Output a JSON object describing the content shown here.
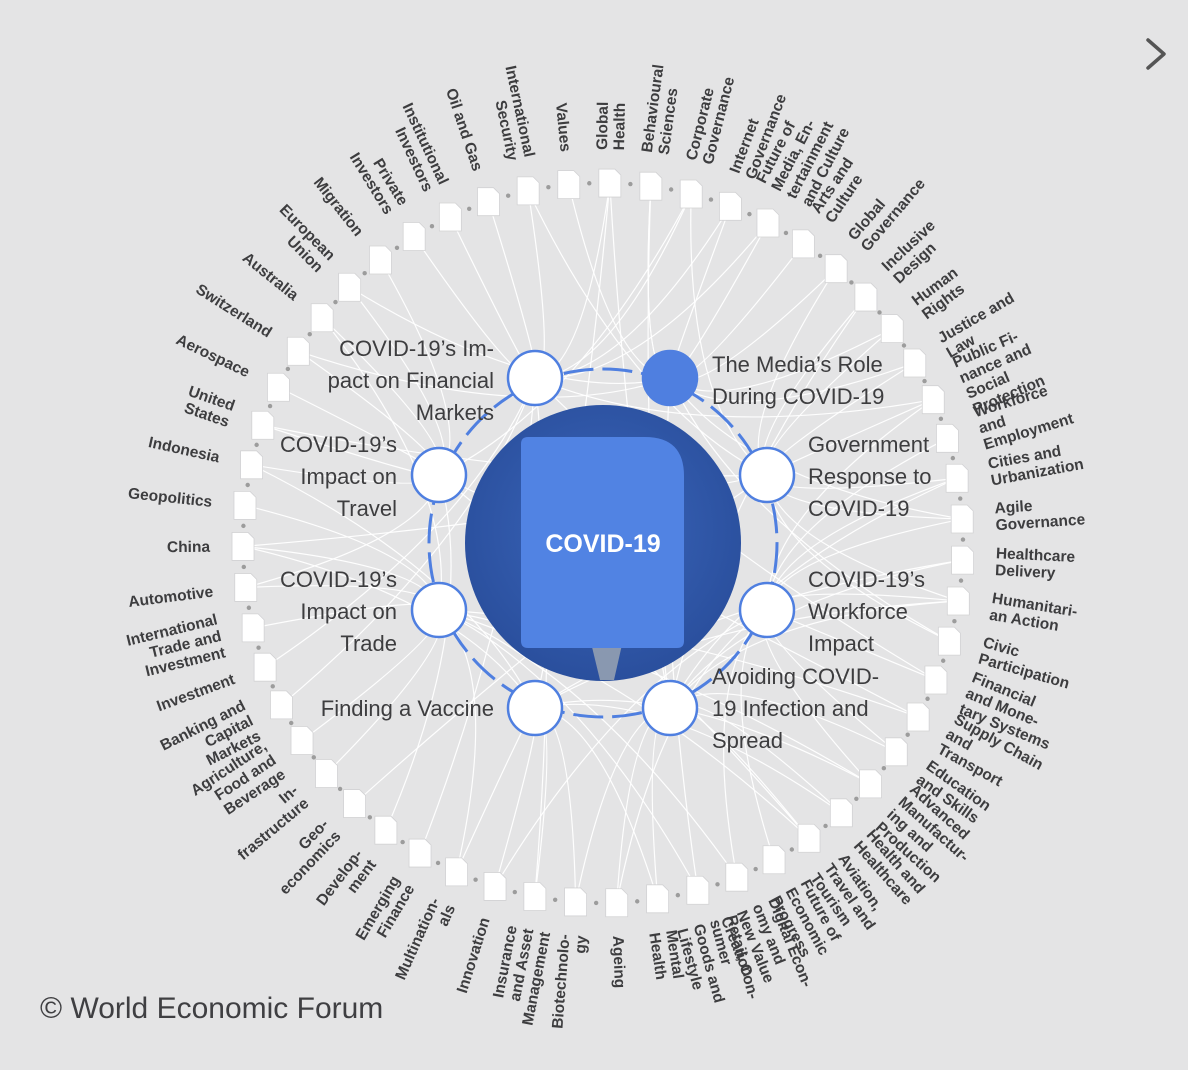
{
  "center": {
    "label": "COVID-19",
    "color": "#5183e3",
    "disc_color": "#2f57a7"
  },
  "colors": {
    "background": "#e4e4e5",
    "ring": "#4f7fe0",
    "link": "#ffffff",
    "label": "#3d3d3f",
    "dot": "#9c9c9c"
  },
  "subtopics": [
    {
      "label": "COVID-19’s Im-\npact on Financial\nMarkets",
      "selected": false
    },
    {
      "label": "The Media’s Role\nDuring COVID-19",
      "selected": true
    },
    {
      "label": "Government\nResponse to\nCOVID-19",
      "selected": false
    },
    {
      "label": "COVID-19’s\nWorkforce\nImpact",
      "selected": false
    },
    {
      "label": "Avoiding COVID-\n19 Infection and\nSpread",
      "selected": false
    },
    {
      "label": "Finding a Vaccine",
      "selected": false
    },
    {
      "label": "COVID-19’s\nImpact on\nTrade",
      "selected": false
    },
    {
      "label": "COVID-19’s\nImpact on\nTravel",
      "selected": false
    }
  ],
  "topics": [
    "International\nSecurity",
    "Values",
    "Global\nHealth",
    "Behavioural\nSciences",
    "Corporate\nGovernance",
    "Internet\nGovernance",
    "Future of\nMedia, En-\ntertainment\nand Culture",
    "Arts and\nCulture",
    "Global\nGovernance",
    "Inclusive\nDesign",
    "Human\nRights",
    "Justice and\nLaw",
    "Public Fi-\nnance and\nSocial\nProtection",
    "Workforce\nand\nEmployment",
    "Cities and\nUrbanization",
    "Agile\nGovernance",
    "Healthcare\nDelivery",
    "Humanitari-\nan Action",
    "Civic\nParticipation",
    "Financial\nand Mone-\ntary Systems",
    "Supply Chain\nand\nTransport",
    "Education\nand Skills",
    "Advanced\nManufactur-\ning and\nProduction",
    "Health and\nHealthcare",
    "Aviation,\nTravel and\nTourism",
    "Future of\nEconomic\nProgress",
    "Digital Econ-\nomy and\nNew Value\nCreation",
    "Retail, Con-\nsumer\nGoods and\nLifestyle",
    "Mental\nHealth",
    "Ageing",
    "Biotechnolo-\ngy",
    "Insurance\nand Asset\nManagement",
    "Innovation",
    "Multination-\nals",
    "Emerging\nFinance",
    "Develop-\nment",
    "Geo-\neconomics",
    "In-\nfrastructure",
    "Agriculture,\nFood and\nBeverage",
    "Banking and\nCapital\nMarkets",
    "Investment",
    "International\nTrade and\nInvestment",
    "Automotive",
    "China",
    "Geopolitics",
    "Indonesia",
    "United\nStates",
    "Aerospace",
    "Switzerland",
    "Australia",
    "European\nUnion",
    "Migration",
    "Private\nInvestors",
    "Institutional\nInvestors",
    "Oil and Gas"
  ],
  "links": [
    [
      0,
      0
    ],
    [
      0,
      2
    ],
    [
      0,
      4
    ],
    [
      0,
      5
    ],
    [
      0,
      6
    ],
    [
      0,
      12
    ],
    [
      0,
      19
    ],
    [
      0,
      31
    ],
    [
      0,
      34
    ],
    [
      0,
      39
    ],
    [
      0,
      52
    ],
    [
      0,
      53
    ],
    [
      0,
      54
    ],
    [
      0,
      40
    ],
    [
      1,
      1
    ],
    [
      1,
      3
    ],
    [
      1,
      5
    ],
    [
      1,
      6
    ],
    [
      1,
      7
    ],
    [
      1,
      8
    ],
    [
      1,
      10
    ],
    [
      1,
      11
    ],
    [
      1,
      15
    ],
    [
      1,
      18
    ],
    [
      1,
      27
    ],
    [
      1,
      48
    ],
    [
      1,
      50
    ],
    [
      1,
      3
    ],
    [
      2,
      8
    ],
    [
      2,
      9
    ],
    [
      2,
      10
    ],
    [
      2,
      11
    ],
    [
      2,
      12
    ],
    [
      2,
      14
    ],
    [
      2,
      15
    ],
    [
      2,
      17
    ],
    [
      2,
      18
    ],
    [
      2,
      0
    ],
    [
      2,
      4
    ],
    [
      2,
      46
    ],
    [
      2,
      43
    ],
    [
      2,
      36
    ],
    [
      3,
      13
    ],
    [
      3,
      14
    ],
    [
      3,
      19
    ],
    [
      3,
      21
    ],
    [
      3,
      22
    ],
    [
      3,
      25
    ],
    [
      3,
      26
    ],
    [
      3,
      15
    ],
    [
      3,
      17
    ],
    [
      3,
      12
    ],
    [
      3,
      29
    ],
    [
      3,
      32
    ],
    [
      4,
      2
    ],
    [
      4,
      16
    ],
    [
      4,
      17
    ],
    [
      4,
      23
    ],
    [
      4,
      24
    ],
    [
      4,
      28
    ],
    [
      4,
      29
    ],
    [
      4,
      30
    ],
    [
      4,
      3
    ],
    [
      4,
      9
    ],
    [
      4,
      21
    ],
    [
      4,
      14
    ],
    [
      5,
      2
    ],
    [
      5,
      16
    ],
    [
      5,
      30
    ],
    [
      5,
      31
    ],
    [
      5,
      33
    ],
    [
      5,
      32
    ],
    [
      5,
      23
    ],
    [
      5,
      28
    ],
    [
      5,
      17
    ],
    [
      5,
      22
    ],
    [
      5,
      45
    ],
    [
      5,
      43
    ],
    [
      6,
      20
    ],
    [
      6,
      22
    ],
    [
      6,
      26
    ],
    [
      6,
      33
    ],
    [
      6,
      37
    ],
    [
      6,
      38
    ],
    [
      6,
      41
    ],
    [
      6,
      42
    ],
    [
      6,
      43
    ],
    [
      6,
      44
    ],
    [
      6,
      49
    ],
    [
      6,
      24
    ],
    [
      6,
      27
    ],
    [
      7,
      24
    ],
    [
      7,
      47
    ],
    [
      7,
      49
    ],
    [
      7,
      50
    ],
    [
      7,
      51
    ],
    [
      7,
      46
    ],
    [
      7,
      45
    ],
    [
      7,
      48
    ],
    [
      7,
      42
    ],
    [
      7,
      4
    ],
    [
      7,
      20
    ],
    [
      7,
      35
    ]
  ],
  "footer": {
    "copyright": "© World Economic Forum"
  },
  "nav": {
    "next_icon": "chevron-right-icon"
  }
}
